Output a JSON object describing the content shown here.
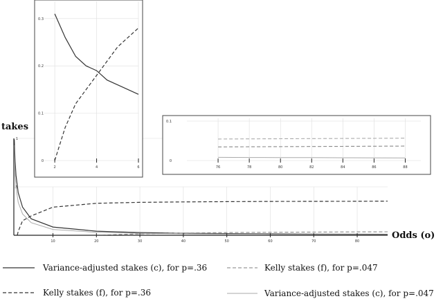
{
  "chart_data": [
    {
      "id": "main",
      "type": "line",
      "ylabel": "takes",
      "xlabel": "Odds (o)",
      "xlim": [
        1,
        87
      ],
      "ylim": [
        0,
        1
      ],
      "xticks": [
        "10",
        "20",
        "30",
        "40",
        "50",
        "60",
        "70",
        "80"
      ],
      "yticks": [
        "1",
        ".5"
      ],
      "series": [
        {
          "name": "Variance-adjusted stakes (c), for p=.36",
          "style": "solid-dark",
          "x": [
            1.1,
            1.3,
            1.5,
            2,
            3,
            5,
            10,
            20,
            30,
            40,
            50,
            60,
            70,
            80,
            87
          ],
          "y": [
            0.99,
            0.76,
            0.62,
            0.44,
            0.29,
            0.17,
            0.085,
            0.042,
            0.028,
            0.021,
            0.017,
            0.014,
            0.012,
            0.011,
            0.01
          ]
        },
        {
          "name": "Kelly stakes (f), for p=.36",
          "style": "dashed-dark",
          "x": [
            1.8,
            2,
            3,
            5,
            10,
            20,
            30,
            40,
            50,
            60,
            70,
            80,
            87
          ],
          "y": [
            0,
            0.04,
            0.15,
            0.2,
            0.29,
            0.33,
            0.34,
            0.344,
            0.347,
            0.349,
            0.35,
            0.351,
            0.352
          ]
        },
        {
          "name": "Kelly stakes (f), for p=.047",
          "style": "dashed-light",
          "x": [
            21.3,
            25,
            30,
            40,
            50,
            60,
            70,
            80,
            87
          ],
          "y": [
            0,
            0.007,
            0.014,
            0.023,
            0.028,
            0.031,
            0.033,
            0.035,
            0.036
          ]
        },
        {
          "name": "Variance-adjusted stakes (c), for p=.047",
          "style": "solid-light",
          "x": [
            1.1,
            1.3,
            1.5,
            2,
            3,
            5,
            10,
            20,
            30,
            40,
            50,
            60,
            70,
            80,
            87
          ],
          "y": [
            0.93,
            0.62,
            0.5,
            0.34,
            0.22,
            0.13,
            0.06,
            0.03,
            0.02,
            0.015,
            0.012,
            0.01,
            0.008,
            0.007,
            0.0066
          ]
        }
      ]
    },
    {
      "id": "inset-left",
      "type": "line",
      "xlim": [
        1.5,
        6
      ],
      "ylim": [
        0,
        0.31
      ],
      "xticks": [
        "2",
        "4",
        "6"
      ],
      "yticks": [
        "0",
        "0.1",
        "0.2",
        "0.3"
      ],
      "yticks_values": [
        0,
        0.1,
        0.2,
        0.3
      ],
      "series": [
        {
          "style": "solid-dark",
          "x": [
            2,
            2.5,
            3,
            3.5,
            4,
            4.5,
            5,
            5.5,
            6
          ],
          "y": [
            0.33,
            0.26,
            0.22,
            0.2,
            0.19,
            0.17,
            0.16,
            0.15,
            0.14
          ]
        },
        {
          "style": "dashed-dark",
          "x": [
            2,
            2.5,
            3,
            3.5,
            4,
            4.5,
            5,
            5.5,
            6
          ],
          "y": [
            0.0,
            0.07,
            0.12,
            0.15,
            0.18,
            0.21,
            0.24,
            0.26,
            0.28
          ]
        }
      ]
    },
    {
      "id": "inset-right",
      "type": "line",
      "xlim": [
        74,
        89
      ],
      "ylim": [
        0,
        0.1
      ],
      "xticks": [
        "76",
        "78",
        "80",
        "82",
        "84",
        "86",
        "88"
      ],
      "yticks": [
        "0",
        "0.1"
      ],
      "yticks_values": [
        0,
        0.1
      ],
      "series": [
        {
          "style": "dashed-light",
          "x": [
            76,
            78,
            80,
            82,
            84,
            86,
            88
          ],
          "y": [
            0.0345,
            0.035,
            0.0353,
            0.0357,
            0.036,
            0.0363,
            0.0366
          ]
        },
        {
          "style": "dashed-light2",
          "x": [
            76,
            78,
            80,
            82,
            84,
            86,
            88
          ],
          "y": [
            0.0545,
            0.055,
            0.0553,
            0.0557,
            0.056,
            0.0563,
            0.0566
          ]
        },
        {
          "style": "solid-light",
          "x": [
            76,
            78,
            80,
            82,
            84,
            86,
            88
          ],
          "y": [
            0.008,
            0.0078,
            0.0075,
            0.0073,
            0.0071,
            0.0069,
            0.0067
          ]
        }
      ]
    }
  ],
  "colors": {
    "dark": "#333333",
    "light": "#999999",
    "grid": "#dddddd",
    "axis": "#222222"
  }
}
